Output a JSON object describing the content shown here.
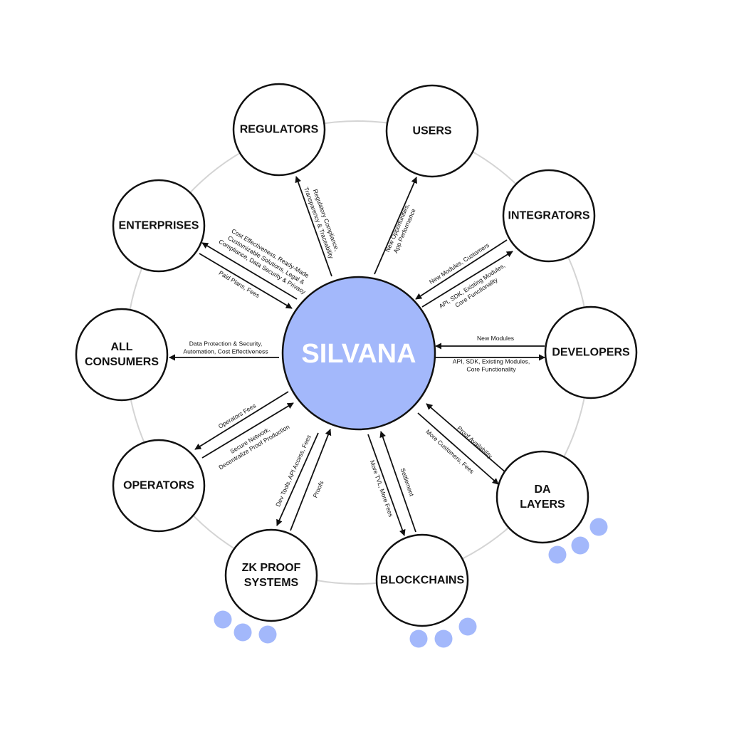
{
  "center": {
    "label": "SILVANA"
  },
  "nodes": {
    "regulators": {
      "lines": [
        "REGULATORS"
      ]
    },
    "users": {
      "lines": [
        "USERS"
      ]
    },
    "integrators": {
      "lines": [
        "INTEGRATORS"
      ]
    },
    "developers": {
      "lines": [
        "DEVELOPERS"
      ]
    },
    "da_layers": {
      "lines": [
        "DA",
        "LAYERS"
      ]
    },
    "blockchains": {
      "lines": [
        "BLOCKCHAINS"
      ]
    },
    "zk_proof_systems": {
      "lines": [
        "ZK PROOF",
        "SYSTEMS"
      ]
    },
    "operators": {
      "lines": [
        "OPERATORS"
      ]
    },
    "all_consumers": {
      "lines": [
        "ALL",
        "CONSUMERS"
      ]
    },
    "enterprises": {
      "lines": [
        "ENTERPRISES"
      ]
    }
  },
  "edges": {
    "regulators": [
      "Regulatory Compliance,",
      "Transparency & Traceability"
    ],
    "users": [
      "New Opportunities,",
      "App Performance"
    ],
    "integrators_in": [
      "New Modules, Customers"
    ],
    "integrators_out": [
      "API, SDK, Existing Modules,",
      "Core Functionality"
    ],
    "developers_in": [
      "New Modules"
    ],
    "developers_out": [
      "API, SDK, Existing Modules,",
      "Core Functionality"
    ],
    "da_in": [
      "Proof Availability"
    ],
    "da_out": [
      "More Customers, Fees"
    ],
    "blockchains_out": [
      "More TVL, More Fees"
    ],
    "blockchains_in": [
      "Settlement"
    ],
    "zk_out": [
      "Dev Tools, API Access, Fees"
    ],
    "zk_in": [
      "Proofs"
    ],
    "operators_out": [
      "Operators Fees"
    ],
    "operators_in": [
      "Secure Network,",
      "Decentralize Proof Production"
    ],
    "all_consumers": [
      "Data Protection & Security,",
      "Automation, Cost Effectiveness"
    ],
    "enterprises_out": [
      "Cost Effectiveness, Ready-Made",
      "Customizable Solutions, Legal &",
      "Compliance, Data Security & Privacy"
    ],
    "enterprises_in": [
      "Paid Plans, Fees"
    ]
  },
  "colors": {
    "accent": "#a3b8fb",
    "stroke": "#111111",
    "orbit": "#d4d4d4"
  }
}
